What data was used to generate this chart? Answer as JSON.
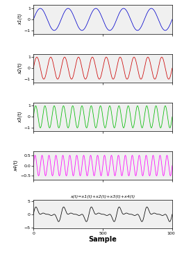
{
  "n_samples": 1001,
  "x_max": 1000,
  "freq1": 5,
  "freq2": 10,
  "freq3": 15,
  "freq4": 20,
  "amp1": 1.0,
  "amp2": 1.0,
  "amp3": 1.0,
  "amp4": 0.5,
  "color1": "#0000cc",
  "color2": "#cc0000",
  "color3": "#00bb00",
  "color4": "#ff00ff",
  "color5": "#000000",
  "ylabel1": "x1(t)",
  "ylabel2": "x2(t)",
  "ylabel3": "x3(t)",
  "ylabel4": "x4(t)",
  "title5": "x(t)=x1(t)+x2(t)+x3(t)+x4(t)",
  "xlabel": "Sample",
  "ylim1": [
    -1.3,
    1.3
  ],
  "ylim2": [
    -1.3,
    1.3
  ],
  "ylim3": [
    -1.3,
    1.3
  ],
  "ylim4": [
    -0.7,
    0.7
  ],
  "ylim5": [
    -5.5,
    5.5
  ],
  "yticks1": [
    -1,
    0,
    1
  ],
  "yticks2": [
    -1,
    0,
    1
  ],
  "yticks3": [
    -1,
    0,
    1
  ],
  "yticks4": [
    -0.5,
    0,
    0.5
  ],
  "yticks5": [
    -5,
    0,
    5
  ],
  "xticks": [
    0,
    500,
    1000
  ],
  "bg_color": "#ffffff",
  "fig_bg": "#ffffff",
  "subplot_bg": "#f0f0f0"
}
